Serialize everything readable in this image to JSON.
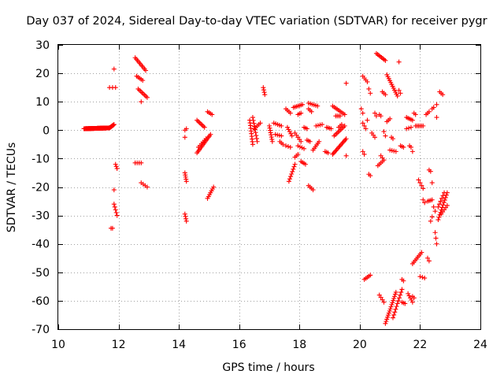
{
  "chart_data": {
    "type": "scatter",
    "title": "Day 037 of 2024, Sidereal Day-to-day VTEC variation (SDTVAR) for receiver pygr",
    "xlabel": "GPS time / hours",
    "ylabel": "SDTVAR / TECUs",
    "xlim": [
      10,
      24
    ],
    "ylim": [
      -70,
      30
    ],
    "xticks": [
      10,
      12,
      14,
      16,
      18,
      20,
      22,
      24
    ],
    "yticks": [
      30,
      20,
      10,
      0,
      -10,
      -20,
      -30,
      -40,
      -50,
      -60,
      -70
    ],
    "grid": true,
    "marker": "plus",
    "color": "#ff0000",
    "segments": [
      [
        10.85,
        0.5,
        11.7,
        0.8,
        120
      ],
      [
        11.7,
        0.8,
        11.85,
        2.0,
        12
      ],
      [
        11.85,
        21.5,
        11.85,
        21.5,
        1
      ],
      [
        11.7,
        15.0,
        11.9,
        15.0,
        3
      ],
      [
        11.9,
        -12.0,
        11.95,
        -13.5,
        3
      ],
      [
        11.85,
        -21.0,
        11.85,
        -21.0,
        1
      ],
      [
        11.85,
        -26.0,
        11.95,
        -30.0,
        5
      ],
      [
        11.75,
        -34.5,
        11.8,
        -34.5,
        2
      ],
      [
        12.55,
        25.5,
        12.9,
        21.0,
        10
      ],
      [
        12.6,
        19.0,
        12.8,
        17.5,
        5
      ],
      [
        12.65,
        14.5,
        12.95,
        11.5,
        8
      ],
      [
        12.75,
        10.0,
        12.75,
        10.0,
        1
      ],
      [
        12.55,
        -11.5,
        12.75,
        -11.5,
        4
      ],
      [
        12.75,
        -18.5,
        12.95,
        -20.0,
        4
      ],
      [
        14.2,
        0.0,
        14.25,
        0.5,
        2
      ],
      [
        14.2,
        -2.5,
        14.2,
        -2.5,
        1
      ],
      [
        14.2,
        -15.0,
        14.25,
        -18.0,
        5
      ],
      [
        14.2,
        -29.5,
        14.25,
        -32.0,
        4
      ],
      [
        14.6,
        3.5,
        14.85,
        1.0,
        7
      ],
      [
        14.6,
        -8.0,
        15.05,
        -1.5,
        14
      ],
      [
        14.65,
        -6.0,
        14.9,
        -3.0,
        6
      ],
      [
        14.95,
        6.5,
        15.1,
        5.5,
        4
      ],
      [
        14.95,
        -24.0,
        15.15,
        -20.0,
        7
      ],
      [
        16.35,
        3.5,
        16.45,
        -5.0,
        10
      ],
      [
        16.45,
        4.5,
        16.6,
        -4.0,
        9
      ],
      [
        16.5,
        0.5,
        16.7,
        2.5,
        5
      ],
      [
        16.8,
        15.0,
        16.85,
        12.5,
        4
      ],
      [
        17.0,
        1.5,
        17.1,
        -4.0,
        8
      ],
      [
        17.15,
        2.5,
        17.4,
        1.5,
        5
      ],
      [
        17.2,
        -1.5,
        17.4,
        -2.0,
        4
      ],
      [
        17.35,
        -4.0,
        17.45,
        -5.0,
        3
      ],
      [
        17.55,
        7.5,
        17.7,
        6.0,
        4
      ],
      [
        17.55,
        -5.5,
        17.7,
        -6.0,
        3
      ],
      [
        17.6,
        1.0,
        17.75,
        -2.0,
        5
      ],
      [
        17.65,
        -18.0,
        17.85,
        -12.0,
        8
      ],
      [
        17.8,
        8.0,
        18.1,
        9.0,
        7
      ],
      [
        17.85,
        -1.0,
        18.05,
        -4.0,
        5
      ],
      [
        17.85,
        -9.5,
        17.95,
        -8.5,
        3
      ],
      [
        17.95,
        5.5,
        18.05,
        6.0,
        3
      ],
      [
        17.95,
        -5.5,
        18.15,
        -6.5,
        4
      ],
      [
        18.05,
        -11.0,
        18.2,
        -12.0,
        4
      ],
      [
        18.15,
        1.0,
        18.25,
        0.5,
        3
      ],
      [
        18.25,
        -3.5,
        18.35,
        -4.0,
        3
      ],
      [
        18.3,
        -19.5,
        18.45,
        -21.0,
        4
      ],
      [
        18.3,
        9.5,
        18.6,
        8.5,
        6
      ],
      [
        18.3,
        7.5,
        18.4,
        6.5,
        3
      ],
      [
        18.45,
        -7.0,
        18.65,
        -4.0,
        6
      ],
      [
        18.55,
        1.5,
        18.75,
        2.0,
        4
      ],
      [
        18.85,
        -7.5,
        18.95,
        -8.0,
        3
      ],
      [
        18.9,
        1.0,
        19.05,
        0.5,
        4
      ],
      [
        19.1,
        8.5,
        19.5,
        5.5,
        9
      ],
      [
        19.1,
        -8.5,
        19.55,
        -3.0,
        14
      ],
      [
        19.15,
        -2.0,
        19.5,
        1.5,
        9
      ],
      [
        19.2,
        5.0,
        19.35,
        5.0,
        4
      ],
      [
        19.3,
        1.0,
        19.4,
        2.0,
        3
      ],
      [
        19.55,
        16.5,
        19.55,
        16.5,
        1
      ],
      [
        19.55,
        -9.0,
        19.55,
        -9.0,
        1
      ],
      [
        20.05,
        7.5,
        20.1,
        6.0,
        2
      ],
      [
        20.1,
        19.0,
        20.25,
        17.0,
        4
      ],
      [
        20.1,
        2.5,
        20.2,
        0.5,
        3
      ],
      [
        20.1,
        -7.5,
        20.15,
        -8.5,
        2
      ],
      [
        20.15,
        -52.5,
        20.35,
        -51.0,
        5
      ],
      [
        20.25,
        3.5,
        20.25,
        3.5,
        1
      ],
      [
        20.3,
        14.5,
        20.35,
        13.0,
        2
      ],
      [
        20.3,
        -15.5,
        20.35,
        -16.0,
        2
      ],
      [
        20.4,
        -1.0,
        20.5,
        -2.5,
        3
      ],
      [
        20.5,
        6.0,
        20.55,
        5.0,
        2
      ],
      [
        20.55,
        27.0,
        20.85,
        24.5,
        8
      ],
      [
        20.6,
        -12.5,
        20.75,
        -11.0,
        4
      ],
      [
        20.65,
        -58.0,
        20.8,
        -60.5,
        4
      ],
      [
        20.65,
        5.5,
        20.7,
        5.0,
        2
      ],
      [
        20.7,
        -9.0,
        20.8,
        -10.5,
        3
      ],
      [
        20.75,
        13.5,
        20.85,
        12.5,
        3
      ],
      [
        20.8,
        -0.5,
        20.85,
        -2.0,
        2
      ],
      [
        20.85,
        -68.0,
        21.2,
        -57.0,
        16
      ],
      [
        20.9,
        19.5,
        21.25,
        12.0,
        12
      ],
      [
        20.9,
        3.0,
        21.0,
        4.0,
        3
      ],
      [
        21.0,
        -7.0,
        21.2,
        -7.5,
        4
      ],
      [
        21.05,
        -2.5,
        21.1,
        -3.0,
        2
      ],
      [
        21.1,
        -66.0,
        21.4,
        -56.0,
        11
      ],
      [
        21.3,
        24.0,
        21.3,
        24.0,
        1
      ],
      [
        21.3,
        14.0,
        21.35,
        13.0,
        2
      ],
      [
        21.35,
        -5.5,
        21.45,
        -6.0,
        3
      ],
      [
        21.4,
        -52.5,
        21.45,
        -53.0,
        2
      ],
      [
        21.4,
        -60.5,
        21.5,
        -61.0,
        3
      ],
      [
        21.55,
        4.5,
        21.75,
        3.5,
        5
      ],
      [
        21.55,
        0.5,
        21.7,
        1.0,
        3
      ],
      [
        21.6,
        -57.5,
        21.75,
        -60.5,
        5
      ],
      [
        21.65,
        -5.5,
        21.7,
        -6.0,
        2
      ],
      [
        21.75,
        -7.5,
        21.8,
        -7.5,
        1
      ],
      [
        21.75,
        -47.0,
        22.05,
        -43.0,
        8
      ],
      [
        21.75,
        -58.5,
        21.8,
        -59.0,
        2
      ],
      [
        21.8,
        6.0,
        21.85,
        5.5,
        2
      ],
      [
        21.85,
        1.5,
        22.1,
        1.5,
        6
      ],
      [
        21.95,
        -17.5,
        22.1,
        -20.5,
        4
      ],
      [
        22.0,
        -51.5,
        22.15,
        -52.0,
        3
      ],
      [
        22.1,
        -24.5,
        22.15,
        -25.5,
        2
      ],
      [
        22.2,
        5.5,
        22.3,
        6.5,
        3
      ],
      [
        22.25,
        -45.0,
        22.3,
        -46.0,
        2
      ],
      [
        22.25,
        -25.0,
        22.4,
        -24.5,
        4
      ],
      [
        22.3,
        -14.0,
        22.35,
        -14.5,
        2
      ],
      [
        22.35,
        -32.0,
        22.4,
        -30.5,
        2
      ],
      [
        22.4,
        -18.5,
        22.4,
        -18.5,
        1
      ],
      [
        22.4,
        7.5,
        22.45,
        8.0,
        2
      ],
      [
        22.45,
        -27.0,
        22.5,
        -28.5,
        2
      ],
      [
        22.5,
        -36.0,
        22.55,
        -40.0,
        3
      ],
      [
        22.55,
        9.0,
        22.55,
        9.0,
        1
      ],
      [
        22.55,
        4.5,
        22.55,
        4.5,
        1
      ],
      [
        22.6,
        -31.5,
        22.9,
        -22.0,
        12
      ],
      [
        22.6,
        -27.0,
        22.8,
        -22.0,
        6
      ],
      [
        22.65,
        13.5,
        22.75,
        12.5,
        3
      ],
      [
        22.7,
        -29.5,
        22.9,
        -26.5,
        5
      ]
    ]
  }
}
